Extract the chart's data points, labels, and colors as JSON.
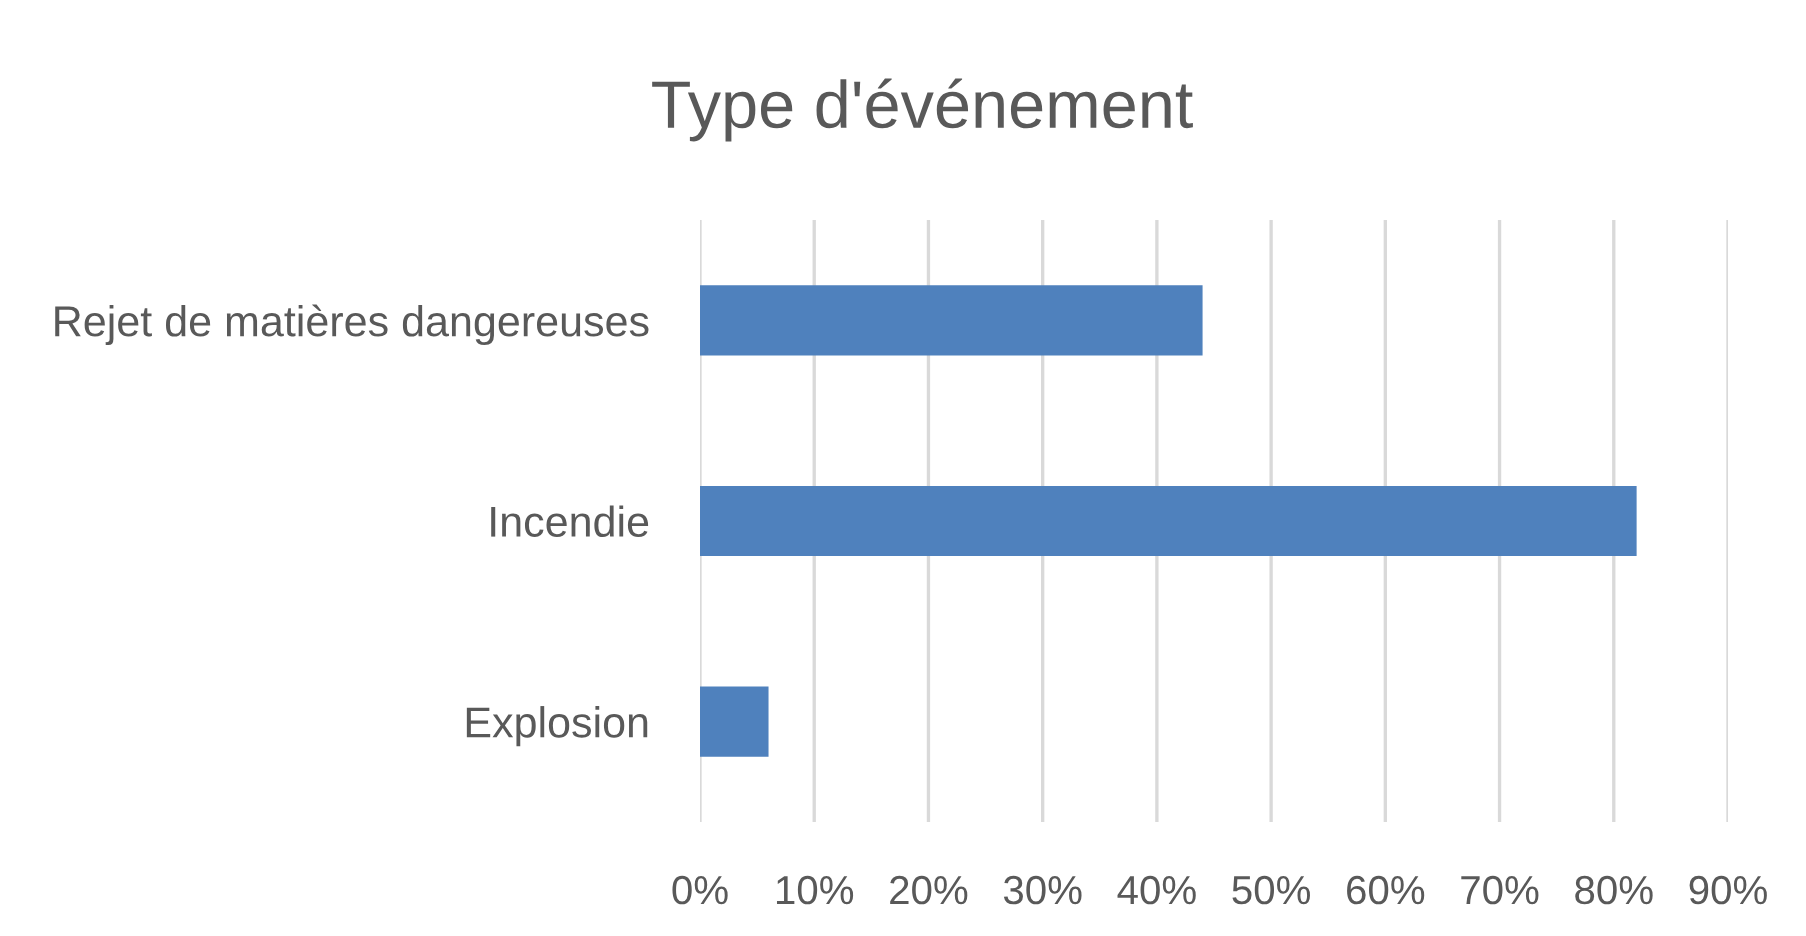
{
  "chart_data": {
    "type": "bar",
    "title": "Type d'événement",
    "orientation": "horizontal",
    "categories": [
      "Rejet de matières dangereuses",
      "Incendie",
      "Explosion"
    ],
    "values": [
      44,
      82,
      6
    ],
    "color": "#4f81bd",
    "xlim": [
      0,
      90
    ],
    "xticks": [
      {
        "value": 0,
        "label": "0%"
      },
      {
        "value": 10,
        "label": "10%"
      },
      {
        "value": 20,
        "label": "20%"
      },
      {
        "value": 30,
        "label": "30%"
      },
      {
        "value": 40,
        "label": "40%"
      },
      {
        "value": 50,
        "label": "50%"
      },
      {
        "value": 60,
        "label": "60%"
      },
      {
        "value": 70,
        "label": "70%"
      },
      {
        "value": 80,
        "label": "80%"
      },
      {
        "value": 90,
        "label": "90%"
      }
    ],
    "grid": "x"
  }
}
